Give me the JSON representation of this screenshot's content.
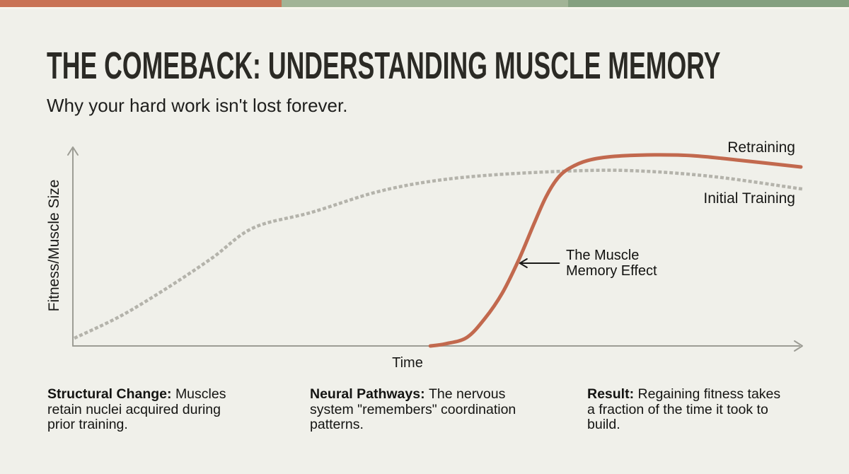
{
  "page": {
    "background": "#f0f0ea"
  },
  "top_bar": {
    "segments": [
      {
        "name": "accent-orange",
        "color": "#c97354",
        "width_pct": 33.2
      },
      {
        "name": "accent-sage-light",
        "color": "#a2b496",
        "width_pct": 33.7
      },
      {
        "name": "accent-sage-dark",
        "color": "#85a07f",
        "width_pct": 33.1
      }
    ]
  },
  "header": {
    "title": "THE COMEBACK: UNDERSTANDING MUSCLE MEMORY",
    "subtitle": "Why your hard work isn't lost forever."
  },
  "chart_data": {
    "type": "line",
    "title": "",
    "xlabel": "Time",
    "ylabel": "Fitness/Muscle Size",
    "axes_note": "qualitative sketch chart - no numeric ticks or gridlines",
    "axis_color": "#9d9d95",
    "xlim": [
      0,
      100
    ],
    "ylim": [
      0,
      100
    ],
    "grid": false,
    "legend_position": "right-of-curves",
    "series": [
      {
        "name": "Initial Training",
        "style": "dotted",
        "color": "#b4b3ab",
        "x": [
          0.4,
          6.5,
          12.8,
          19.1,
          24.8,
          32.8,
          41.5,
          49.3,
          58.0,
          70.2,
          78.4,
          88.2,
          100
        ],
        "y": [
          4.2,
          14.8,
          28.5,
          43.7,
          58.8,
          66.5,
          76.4,
          82.0,
          85.2,
          87.3,
          87.0,
          84.2,
          78.2
        ]
      },
      {
        "name": "Retraining",
        "style": "solid",
        "color": "#c2694e",
        "x": [
          49.1,
          51.2,
          54.1,
          56.6,
          59.0,
          61.3,
          63.4,
          65.0,
          66.6,
          68.2,
          70.7,
          74.5,
          79.9,
          85.2,
          91.1,
          100
        ],
        "y": [
          0,
          1.1,
          4.2,
          13.7,
          26.4,
          43.3,
          61.3,
          74.3,
          83.5,
          88.4,
          92.3,
          94.4,
          95.1,
          94.7,
          92.6,
          89.1
        ]
      }
    ],
    "annotation": {
      "label": "The Muscle Memory Effect",
      "arrow_color": "#1a1a18",
      "arrow_from": {
        "x": 66.8,
        "y": 41.2
      },
      "arrow_to": {
        "x": 61.4,
        "y": 41.2
      }
    }
  },
  "footnotes": [
    {
      "lead": "Structural Change: ",
      "text": "Muscles retain nuclei acquired during prior training."
    },
    {
      "lead": "Neural Pathways: ",
      "text": "The nervous system \"remembers\" coordination patterns."
    },
    {
      "lead": "Result: ",
      "text": "Regaining fitness takes a fraction of the time it took to build."
    }
  ]
}
